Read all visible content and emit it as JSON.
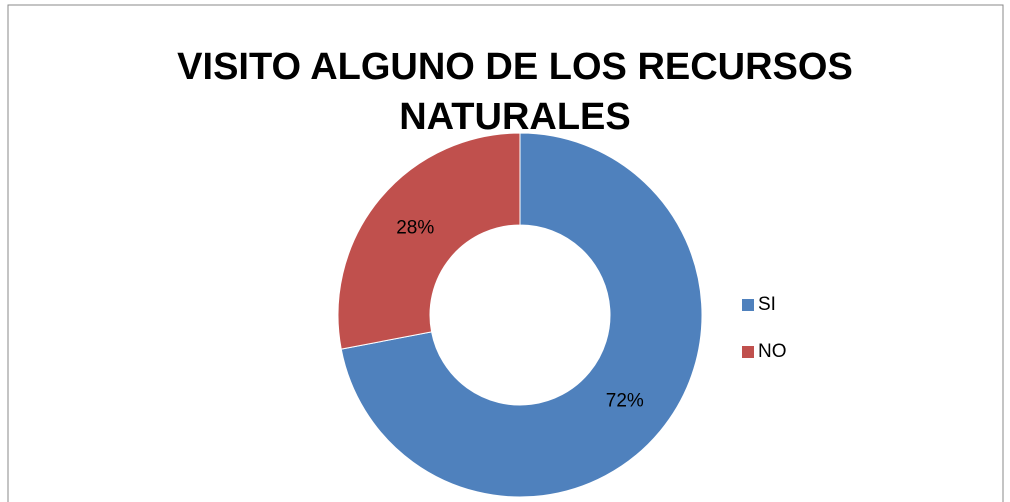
{
  "chart_data": {
    "type": "donut",
    "title": "VISITO ALGUNO DE LOS RECURSOS NATURALES",
    "categories": [
      "SI",
      "NO"
    ],
    "values": [
      72,
      28
    ],
    "value_labels": [
      "72%",
      "28%"
    ],
    "colors": [
      "#4f81bd",
      "#c0504d"
    ],
    "legend": "right"
  }
}
